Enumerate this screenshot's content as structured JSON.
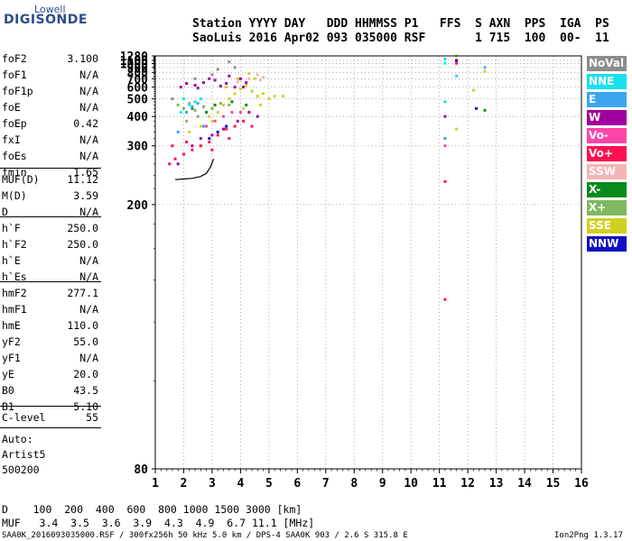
{
  "logo": {
    "top": "Lowell",
    "main": "DIGISONDE"
  },
  "header": {
    "line1": "Station YYYY DAY   DDD HHMMSS P1   FFS  S AXN  PPS  IGA  PS",
    "line2": "SaoLuis 2016 Apr02 093 035000 RSF       1 715  100  00-  11"
  },
  "params_a": [
    {
      "name": "foF2",
      "value": "3.100"
    },
    {
      "name": "foF1",
      "value": "N/A"
    },
    {
      "name": "foF1p",
      "value": "N/A"
    },
    {
      "name": "foE",
      "value": "N/A"
    },
    {
      "name": "foEp",
      "value": "0.42"
    },
    {
      "name": "fxI",
      "value": "N/A"
    },
    {
      "name": "foEs",
      "value": "N/A"
    },
    {
      "name": "fmin",
      "value": "1.65"
    }
  ],
  "params_b": [
    {
      "name": "MUF(D)",
      "value": "11.12"
    },
    {
      "name": "M(D)",
      "value": "3.59"
    },
    {
      "name": "D",
      "value": "N/A"
    }
  ],
  "params_c": [
    {
      "name": "h`F",
      "value": "250.0"
    },
    {
      "name": "h`F2",
      "value": "250.0"
    },
    {
      "name": "h`E",
      "value": "N/A"
    },
    {
      "name": "h`Es",
      "value": "N/A"
    }
  ],
  "params_d": [
    {
      "name": "hmF2",
      "value": "277.1"
    },
    {
      "name": "hmF1",
      "value": "N/A"
    },
    {
      "name": "hmE",
      "value": "110.0"
    },
    {
      "name": "yF2",
      "value": "55.0"
    },
    {
      "name": "yF1",
      "value": "N/A"
    },
    {
      "name": "yE",
      "value": "20.0"
    },
    {
      "name": "B0",
      "value": "43.5"
    },
    {
      "name": "B1",
      "value": "5.10"
    }
  ],
  "params_e": [
    {
      "name": "C-level",
      "value": "55"
    }
  ],
  "info": [
    "Auto:",
    "Artist5",
    "500200"
  ],
  "legend": [
    {
      "label": "NoVal",
      "color": "#8c8c8c"
    },
    {
      "label": "NNE",
      "color": "#18e0f0"
    },
    {
      "label": "E",
      "color": "#3aa6f0"
    },
    {
      "label": "W",
      "color": "#a0009e"
    },
    {
      "label": "Vo-",
      "color": "#ff44a8"
    },
    {
      "label": "Vo+",
      "color": "#ff1050"
    },
    {
      "label": "SSW",
      "color": "#f4b4b4"
    },
    {
      "label": "X-",
      "color": "#0a8a1a"
    },
    {
      "label": "X+",
      "color": "#80b860"
    },
    {
      "label": "SSE",
      "color": "#d0d020"
    },
    {
      "label": "NNW",
      "color": "#1010c0"
    }
  ],
  "bottom": {
    "d_row": "D    100  200  400  600  800 1000 1500 3000 [km]",
    "muf_row": "MUF   3.4  3.5  3.6  3.9  4.3  4.9  6.7 11.1 [MHz]",
    "footer_left": "SAA0K_2016093035000.RSF / 300fx256h 50 kHz 5.0 km / DPS-4 SAA0K 903 / 2.6 S 315.8 E",
    "footer_right": "Ion2Png 1.3.17"
  },
  "chart_data": {
    "type": "scatter",
    "x_ticks": [
      "1",
      "2",
      "3",
      "4",
      "5",
      "6",
      "7",
      "8",
      "9",
      "10",
      "11",
      "12",
      "13",
      "14",
      "15",
      "16"
    ],
    "y_ticks": [
      "80",
      "200",
      "300",
      "400",
      "500",
      "600",
      "700",
      "800",
      "900",
      "1000",
      "1100",
      "1280"
    ],
    "xlim": [
      1,
      16
    ],
    "ylim": [
      80,
      1280
    ],
    "y_scale": "reciprocal",
    "grid": true,
    "legend_position": "right",
    "series": [
      {
        "name": "W",
        "color": "#a0009e",
        "points": [
          [
            1.9,
            600
          ],
          [
            2.1,
            640
          ],
          [
            2.4,
            620
          ],
          [
            2.7,
            650
          ],
          [
            3.1,
            680
          ],
          [
            3.5,
            640
          ],
          [
            3.8,
            600
          ],
          [
            4.0,
            700
          ],
          [
            4.2,
            650
          ],
          [
            3.3,
            610
          ],
          [
            2.5,
            590
          ],
          [
            2.9,
            700
          ],
          [
            3.6,
            740
          ],
          [
            4.1,
            600
          ],
          [
            2.3,
            300
          ],
          [
            2.6,
            320
          ],
          [
            3.0,
            330
          ],
          [
            3.4,
            350
          ],
          [
            3.9,
            380
          ],
          [
            4.3,
            420
          ],
          [
            4.6,
            400
          ],
          [
            2.0,
            280
          ],
          [
            1.8,
            260
          ],
          [
            11.2,
            400
          ],
          [
            11.6,
            1100
          ]
        ]
      },
      {
        "name": "Vo+",
        "color": "#ff1050",
        "points": [
          [
            1.5,
            260
          ],
          [
            1.7,
            270
          ],
          [
            2.0,
            280
          ],
          [
            2.3,
            290
          ],
          [
            2.6,
            300
          ],
          [
            2.9,
            310
          ],
          [
            3.2,
            330
          ],
          [
            3.5,
            350
          ],
          [
            3.8,
            360
          ],
          [
            4.1,
            380
          ],
          [
            4.4,
            360
          ],
          [
            1.6,
            300
          ],
          [
            2.1,
            310
          ],
          [
            3.0,
            290
          ],
          [
            3.6,
            320
          ],
          [
            11.2,
            230
          ],
          [
            11.6,
            1010
          ],
          [
            11.2,
            130
          ]
        ]
      },
      {
        "name": "SSE",
        "color": "#d0d020",
        "points": [
          [
            3.2,
            420
          ],
          [
            3.4,
            460
          ],
          [
            3.6,
            500
          ],
          [
            3.8,
            540
          ],
          [
            4.0,
            580
          ],
          [
            4.2,
            620
          ],
          [
            4.4,
            560
          ],
          [
            4.6,
            520
          ],
          [
            4.8,
            540
          ],
          [
            5.0,
            500
          ],
          [
            5.2,
            520
          ],
          [
            5.5,
            520
          ],
          [
            3.0,
            380
          ],
          [
            3.5,
            600
          ],
          [
            3.9,
            700
          ],
          [
            4.3,
            780
          ],
          [
            4.5,
            700
          ],
          [
            4.7,
            460
          ],
          [
            4.1,
            440
          ],
          [
            2.9,
            400
          ],
          [
            2.6,
            360
          ],
          [
            2.2,
            340
          ],
          [
            11.6,
            1280
          ],
          [
            12.6,
            820
          ],
          [
            12.2,
            570
          ],
          [
            11.6,
            350
          ]
        ]
      },
      {
        "name": "X+",
        "color": "#80b860",
        "points": [
          [
            1.8,
            460
          ],
          [
            2.0,
            440
          ],
          [
            2.2,
            470
          ],
          [
            2.4,
            430
          ],
          [
            2.7,
            450
          ],
          [
            3.0,
            440
          ],
          [
            3.3,
            470
          ],
          [
            2.1,
            380
          ],
          [
            2.5,
            400
          ],
          [
            3.6,
            460
          ]
        ]
      },
      {
        "name": "X-",
        "color": "#0a8a1a",
        "points": [
          [
            2.3,
            440
          ],
          [
            2.8,
            420
          ],
          [
            3.1,
            460
          ],
          [
            3.7,
            480
          ],
          [
            4.2,
            460
          ],
          [
            12.6,
            430
          ]
        ]
      },
      {
        "name": "NNE",
        "color": "#18e0f0",
        "points": [
          [
            2.0,
            500
          ],
          [
            2.2,
            460
          ],
          [
            2.4,
            480
          ],
          [
            1.9,
            420
          ],
          [
            2.6,
            500
          ],
          [
            11.2,
            1150
          ],
          [
            11.2,
            1010
          ],
          [
            11.2,
            480
          ],
          [
            11.6,
            740
          ]
        ]
      },
      {
        "name": "E",
        "color": "#3aa6f0",
        "points": [
          [
            2.1,
            420
          ],
          [
            2.3,
            450
          ],
          [
            2.5,
            470
          ],
          [
            1.8,
            340
          ],
          [
            2.7,
            360
          ],
          [
            11.2,
            320
          ],
          [
            12.6,
            900
          ]
        ]
      },
      {
        "name": "SSW",
        "color": "#f4b4b4",
        "points": [
          [
            4.6,
            760
          ],
          [
            4.8,
            720
          ],
          [
            4.3,
            700
          ],
          [
            3.9,
            660
          ],
          [
            4.7,
            680
          ]
        ]
      },
      {
        "name": "Vo-",
        "color": "#ff44a8",
        "points": [
          [
            2.8,
            360
          ],
          [
            3.1,
            380
          ],
          [
            3.4,
            400
          ],
          [
            3.7,
            420
          ],
          [
            4.0,
            420
          ],
          [
            11.2,
            300
          ]
        ]
      },
      {
        "name": "NNW",
        "color": "#1010c0",
        "points": [
          [
            2.9,
            320
          ],
          [
            3.2,
            340
          ],
          [
            3.5,
            360
          ],
          [
            11.6,
            1100
          ],
          [
            12.3,
            440
          ]
        ]
      },
      {
        "name": "NoVal",
        "color": "#8c8c8c",
        "points": [
          [
            3.0,
            760
          ],
          [
            3.2,
            860
          ],
          [
            3.6,
            1050
          ],
          [
            1.6,
            500
          ],
          [
            2.4,
            700
          ],
          [
            3.8,
            900
          ]
        ]
      }
    ],
    "trace": {
      "name": "virtual-height-trace",
      "color": "#000000",
      "points": [
        [
          1.7,
          233
        ],
        [
          2.0,
          234
        ],
        [
          2.3,
          235
        ],
        [
          2.6,
          238
        ],
        [
          2.8,
          243
        ],
        [
          2.95,
          255
        ],
        [
          3.05,
          270
        ]
      ]
    }
  }
}
